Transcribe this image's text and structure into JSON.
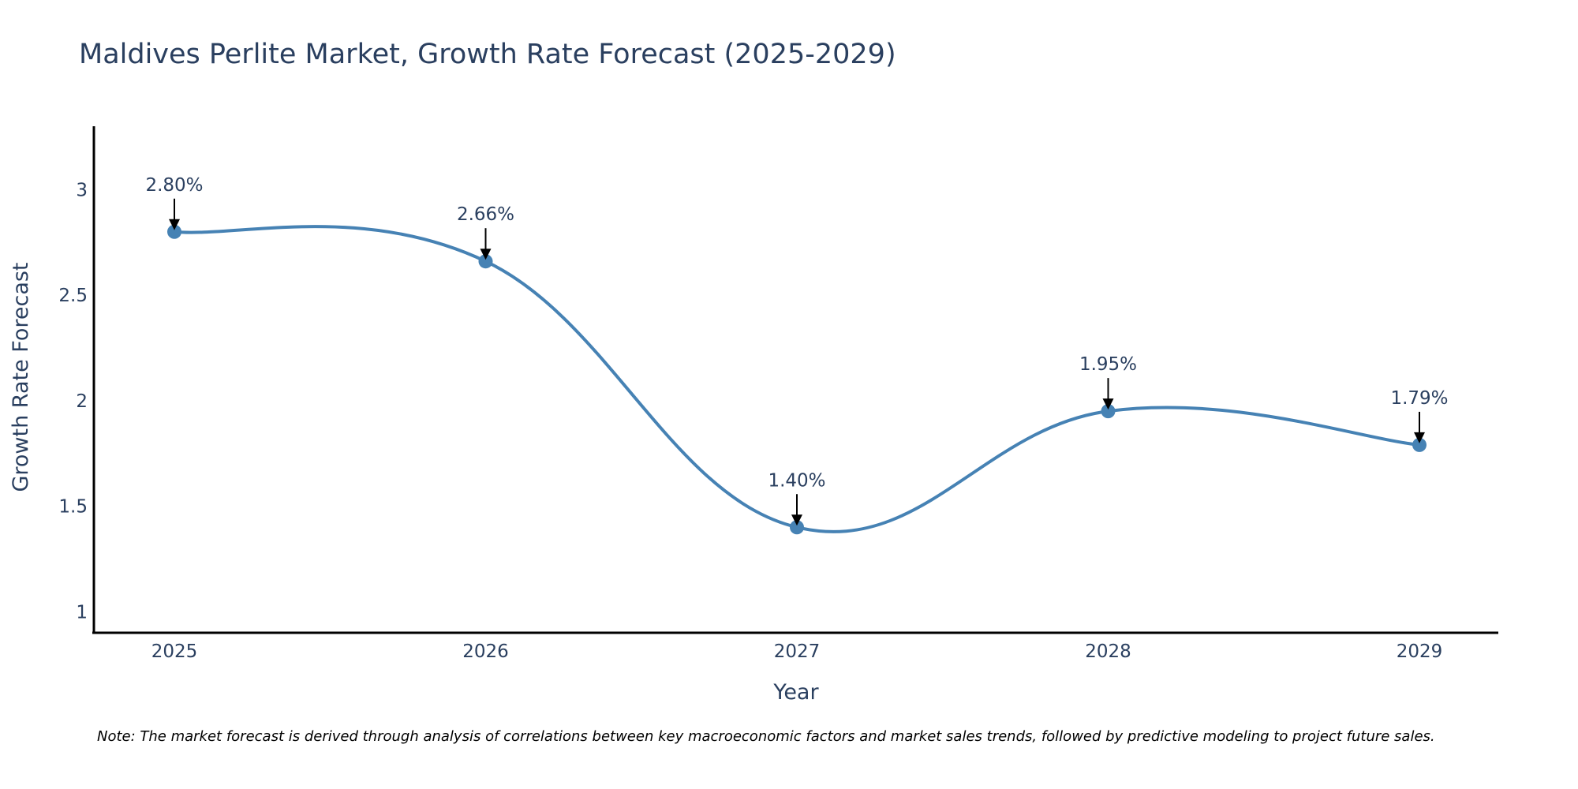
{
  "chart_data": {
    "type": "line",
    "title": "Maldives Perlite Market, Growth Rate Forecast (2025-2029)",
    "xlabel": "Year",
    "ylabel": "Growth Rate Forecast",
    "categories": [
      "2025",
      "2026",
      "2027",
      "2028",
      "2029"
    ],
    "series": [
      {
        "name": "Growth Rate Forecast",
        "values": [
          2.8,
          2.66,
          1.4,
          1.95,
          1.79
        ],
        "labels": [
          "2.80%",
          "2.66%",
          "1.40%",
          "1.95%",
          "1.79%"
        ]
      }
    ],
    "ylim": [
      0.9,
      3.3
    ],
    "yticks": [
      1,
      1.5,
      2,
      2.5,
      3
    ],
    "ytick_labels": [
      "1",
      "1.5",
      "2",
      "2.5",
      "3"
    ],
    "grid": false,
    "line_shape": "spline",
    "colors": {
      "line": "#4682B4",
      "marker": "#4682B4",
      "arrow": "#000000",
      "axis": "#000000",
      "text": "#2a3f5f"
    },
    "note": "Note: The market forecast is derived through analysis of correlations between key macroeconomic factors and market sales trends, followed by predictive modeling to project future sales."
  }
}
